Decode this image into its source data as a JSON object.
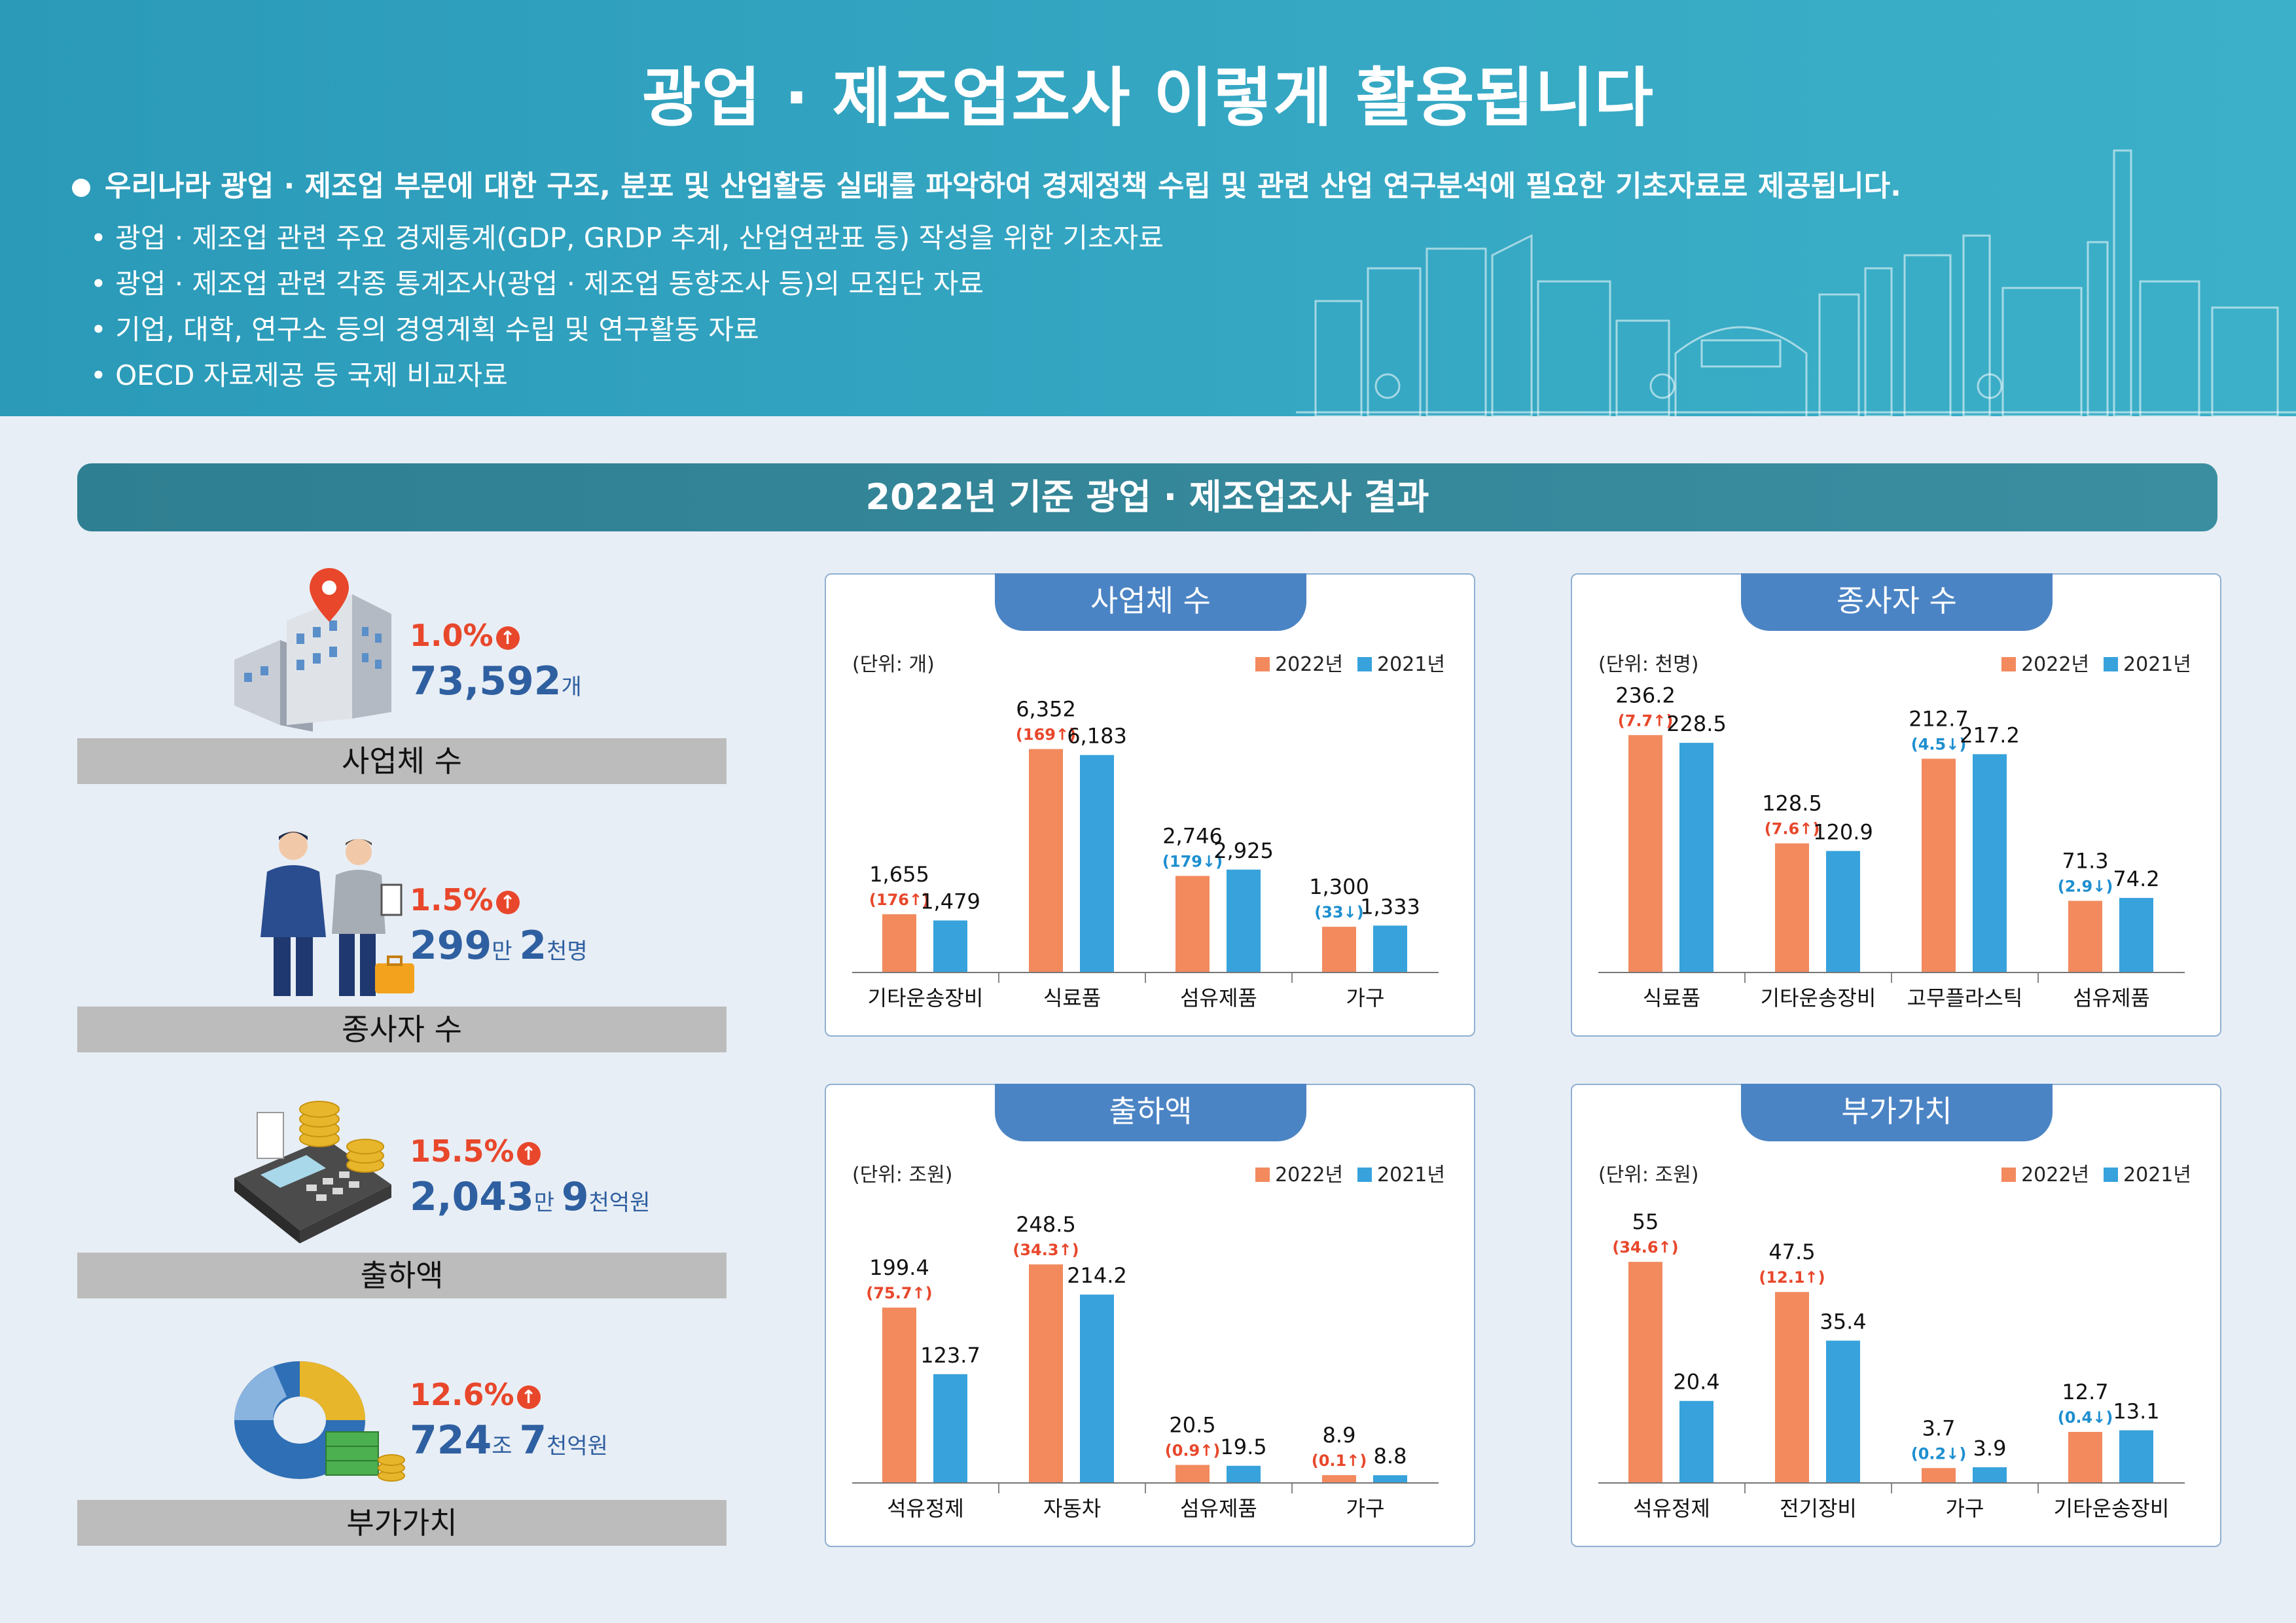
{
  "header": {
    "title": "광업 · 제조업조사 이렇게 활용됩니다",
    "main_bullet": "우리나라 광업 · 제조업 부문에 대한 구조, 분포 및 산업활동 실태를 파악하여 경제정책 수립 및 관련 산업 연구분석에 필요한 기초자료로 제공됩니다.",
    "sub_bullets": [
      "• 광업 · 제조업 관련 주요 경제통계(GDP, GRDP 추계, 산업연관표 등) 작성을 위한 기초자료",
      "• 광업 · 제조업 관련 각종 통계조사(광업 · 제조업 동향조사 등)의 모집단 자료",
      "• 기업, 대학, 연구소 등의 경영계획 수립 및 연구활동 자료",
      "• OECD 자료제공 등 국제 비교자료"
    ]
  },
  "section_title": "2022년 기준 광업 · 제조업조사 결과",
  "metrics": [
    {
      "pct": "1.0%",
      "value_parts": [
        {
          "n": "73,592",
          "u": "개"
        }
      ],
      "label": "사업체 수",
      "icon": "building-location-icon"
    },
    {
      "pct": "1.5%",
      "value_parts": [
        {
          "n": "299",
          "u": "만 "
        },
        {
          "n": "2",
          "u": "천명"
        }
      ],
      "label": "종사자 수",
      "icon": "workers-icon"
    },
    {
      "pct": "15.5%",
      "value_parts": [
        {
          "n": "2,043",
          "u": "만 "
        },
        {
          "n": "9",
          "u": "천억원"
        }
      ],
      "label": "출하액",
      "icon": "cash-register-icon"
    },
    {
      "pct": "12.6%",
      "value_parts": [
        {
          "n": "724",
          "u": "조 "
        },
        {
          "n": "7",
          "u": "천억원"
        }
      ],
      "label": "부가가치",
      "icon": "pie-money-icon"
    }
  ],
  "colors": {
    "y2022": "#f28a5e",
    "y2021": "#37a2dc",
    "up": "#e8472b",
    "down": "#1e8fd0",
    "value": "#2e5fa0"
  },
  "chart_data": [
    {
      "type": "bar",
      "title": "사업체 수",
      "unit": "(단위: 개)",
      "legend": [
        "2022년",
        "2021년"
      ],
      "categories": [
        "기타운송장비",
        "식료품",
        "섬유제품",
        "가구"
      ],
      "series": [
        {
          "name": "2022년",
          "values": [
            1655,
            6352,
            2746,
            1300
          ],
          "labels": [
            "1,655",
            "6,352",
            "2,746",
            "1,300"
          ]
        },
        {
          "name": "2021년",
          "values": [
            1479,
            6183,
            2925,
            1333
          ],
          "labels": [
            "1,479",
            "6,183",
            "2,925",
            "1,333"
          ]
        }
      ],
      "changes": [
        {
          "text": "176",
          "dir": "up"
        },
        {
          "text": "169",
          "dir": "up"
        },
        {
          "text": "179",
          "dir": "down"
        },
        {
          "text": "33",
          "dir": "down"
        }
      ],
      "ymax": 8000
    },
    {
      "type": "bar",
      "title": "종사자 수",
      "unit": "(단위: 천명)",
      "legend": [
        "2022년",
        "2021년"
      ],
      "categories": [
        "식료품",
        "기타운송장비",
        "고무플라스틱",
        "섬유제품"
      ],
      "series": [
        {
          "name": "2022년",
          "values": [
            236.2,
            128.5,
            212.7,
            71.3
          ],
          "labels": [
            "236.2",
            "128.5",
            "212.7",
            "71.3"
          ]
        },
        {
          "name": "2021년",
          "values": [
            228.5,
            120.9,
            217.2,
            74.2
          ],
          "labels": [
            "228.5",
            "120.9",
            "217.2",
            "74.2"
          ]
        }
      ],
      "changes": [
        {
          "text": "7.7",
          "dir": "up"
        },
        {
          "text": "7.6",
          "dir": "up"
        },
        {
          "text": "4.5",
          "dir": "down"
        },
        {
          "text": "2.9",
          "dir": "down"
        }
      ],
      "ymax": 280
    },
    {
      "type": "bar",
      "title": "출하액",
      "unit": "(단위: 조원)",
      "legend": [
        "2022년",
        "2021년"
      ],
      "categories": [
        "석유정제",
        "자동차",
        "섬유제품",
        "가구"
      ],
      "series": [
        {
          "name": "2022년",
          "values": [
            199.4,
            248.5,
            20.5,
            8.9
          ],
          "labels": [
            "199.4",
            "248.5",
            "20.5",
            "8.9"
          ]
        },
        {
          "name": "2021년",
          "values": [
            123.7,
            214.2,
            19.5,
            8.8
          ],
          "labels": [
            "123.7",
            "214.2",
            "19.5",
            "8.8"
          ]
        }
      ],
      "changes": [
        {
          "text": "75.7",
          "dir": "up"
        },
        {
          "text": "34.3",
          "dir": "up"
        },
        {
          "text": "0.9",
          "dir": "up"
        },
        {
          "text": "0.1",
          "dir": "up"
        }
      ],
      "ymax": 320
    },
    {
      "type": "bar",
      "title": "부가가치",
      "unit": "(단위: 조원)",
      "legend": [
        "2022년",
        "2021년"
      ],
      "categories": [
        "석유정제",
        "전기장비",
        "가구",
        "기타운송장비"
      ],
      "series": [
        {
          "name": "2022년",
          "values": [
            55,
            47.5,
            3.7,
            12.7
          ],
          "labels": [
            "55",
            "47.5",
            "3.7",
            "12.7"
          ]
        },
        {
          "name": "2021년",
          "values": [
            20.4,
            35.4,
            3.9,
            13.1
          ],
          "labels": [
            "20.4",
            "35.4",
            "3.9",
            "13.1"
          ]
        }
      ],
      "changes": [
        {
          "text": "34.6",
          "dir": "up"
        },
        {
          "text": "12.1",
          "dir": "up"
        },
        {
          "text": "0.2",
          "dir": "down"
        },
        {
          "text": "0.4",
          "dir": "down"
        }
      ],
      "ymax": 70
    }
  ]
}
